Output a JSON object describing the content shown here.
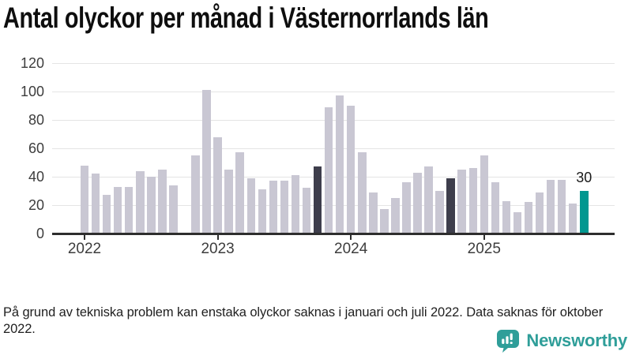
{
  "title": "Antal olyckor per månad i Västernorrlands län",
  "chart_data": {
    "type": "bar",
    "title": "Antal olyckor per månad i Västernorrlands län",
    "x": [
      "2022-01",
      "2022-02",
      "2022-03",
      "2022-04",
      "2022-05",
      "2022-06",
      "2022-07",
      "2022-08",
      "2022-09",
      "2022-10",
      "2022-11",
      "2022-12",
      "2023-01",
      "2023-02",
      "2023-03",
      "2023-04",
      "2023-05",
      "2023-06",
      "2023-07",
      "2023-08",
      "2023-09",
      "2023-10",
      "2023-11",
      "2023-12",
      "2024-01",
      "2024-02",
      "2024-03",
      "2024-04",
      "2024-05",
      "2024-06",
      "2024-07",
      "2024-08",
      "2024-09",
      "2024-10",
      "2024-11",
      "2024-12",
      "2025-01",
      "2025-02",
      "2025-03",
      "2025-04",
      "2025-05",
      "2025-06",
      "2025-07",
      "2025-08",
      "2025-09",
      "2025-10"
    ],
    "values": [
      48,
      42,
      27,
      33,
      33,
      44,
      40,
      45,
      34,
      null,
      55,
      101,
      68,
      45,
      57,
      39,
      31,
      37,
      37,
      41,
      32,
      47,
      89,
      97,
      90,
      57,
      29,
      17,
      25,
      36,
      43,
      47,
      30,
      39,
      45,
      46,
      55,
      36,
      23,
      15,
      22,
      29,
      38,
      38,
      21,
      30
    ],
    "missing_months": [
      "2022-10"
    ],
    "highlighted_dark": [
      "2023-10",
      "2024-10"
    ],
    "highlighted_current": "2025-10",
    "value_label": {
      "text": "30",
      "month": "2025-10"
    },
    "xlabel": "",
    "ylabel": "",
    "ylim": [
      0,
      120
    ],
    "yticks": [
      0,
      20,
      40,
      60,
      80,
      100,
      120
    ],
    "xticks": [
      "2022",
      "2023",
      "2024",
      "2025"
    ],
    "grid": true,
    "legend": "none",
    "colors": {
      "default": "#c9c7d3",
      "highlight_dark": "#3e3e4c",
      "highlight_current": "#019790",
      "axis": "#2e2e2e",
      "gridline": "#e4e4e4"
    }
  },
  "footer": {
    "note": "På grund av tekniska problem kan enstaka olyckor saknas i januari och juli 2022. Data saknas för oktober 2022."
  },
  "branding": {
    "logo_text": "Newsworthy",
    "logo_color": "#2f9e99"
  }
}
